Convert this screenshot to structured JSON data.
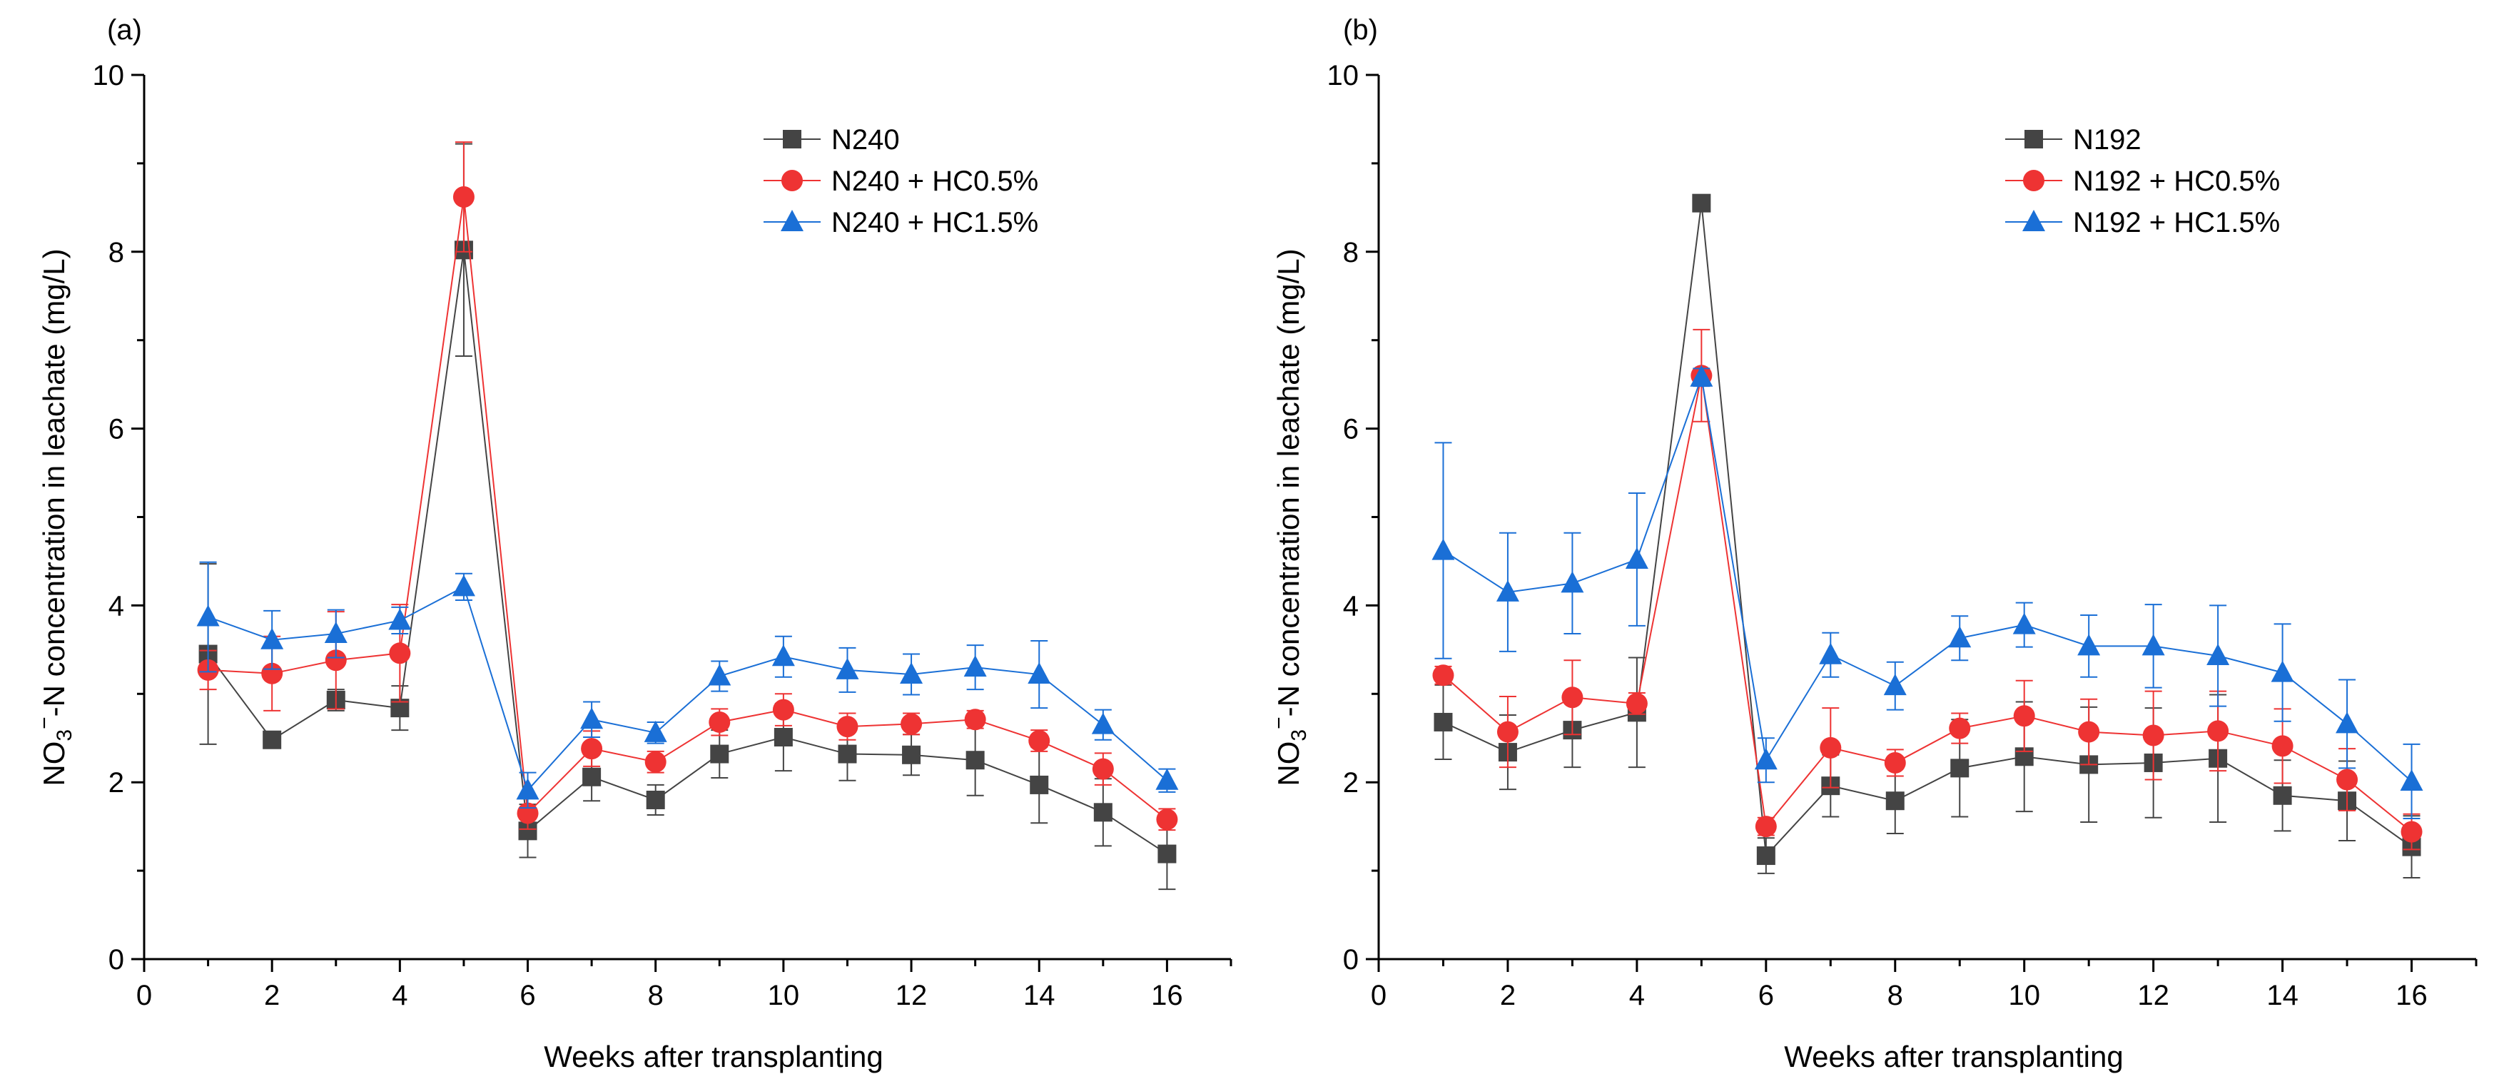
{
  "chart_data": [
    {
      "type": "line",
      "panel_label": "(a)",
      "title": "",
      "xlabel": "Weeks after transplanting",
      "ylabel_prefix": "NO",
      "ylabel_sub": "3",
      "ylabel_sup": "−",
      "ylabel_suffix": "-N concentration in leachate (mg/L)",
      "xlim": [
        0,
        17
      ],
      "ylim": [
        0,
        10
      ],
      "xticks": [
        "0",
        "2",
        "4",
        "6",
        "8",
        "10",
        "12",
        "14",
        "16"
      ],
      "yticks": [
        "0",
        "2",
        "4",
        "6",
        "8",
        "10"
      ],
      "legend_position": "top-right",
      "x": [
        1,
        2,
        3,
        4,
        5,
        6,
        7,
        8,
        9,
        10,
        11,
        12,
        13,
        14,
        15,
        16
      ],
      "series": [
        {
          "name": "N240",
          "color": "#444444",
          "marker": "square",
          "values": [
            3.45,
            2.48,
            2.93,
            2.84,
            8.02,
            1.45,
            2.06,
            1.8,
            2.32,
            2.51,
            2.32,
            2.31,
            2.25,
            1.97,
            1.66,
            1.19
          ],
          "errors": [
            1.02,
            0.05,
            0.12,
            0.25,
            1.2,
            0.3,
            0.27,
            0.17,
            0.27,
            0.38,
            0.3,
            0.23,
            0.4,
            0.43,
            0.38,
            0.4
          ]
        },
        {
          "name": "N240 + HC0.5%",
          "color": "#ee3333",
          "marker": "circle",
          "values": [
            3.27,
            3.23,
            3.38,
            3.46,
            8.62,
            1.65,
            2.38,
            2.23,
            2.68,
            2.82,
            2.63,
            2.66,
            2.71,
            2.47,
            2.15,
            1.58
          ],
          "errors": [
            0.22,
            0.42,
            0.55,
            0.55,
            0.62,
            0.18,
            0.2,
            0.12,
            0.15,
            0.18,
            0.15,
            0.12,
            0.1,
            0.12,
            0.18,
            0.12
          ]
        },
        {
          "name": "N240 + HC1.5%",
          "color": "#1a6fd6",
          "marker": "triangle",
          "values": [
            3.87,
            3.61,
            3.68,
            3.83,
            4.21,
            1.91,
            2.71,
            2.56,
            3.2,
            3.42,
            3.27,
            3.22,
            3.3,
            3.22,
            2.65,
            2.02
          ],
          "errors": [
            0.62,
            0.33,
            0.27,
            0.15,
            0.15,
            0.2,
            0.2,
            0.12,
            0.17,
            0.23,
            0.25,
            0.23,
            0.25,
            0.38,
            0.17,
            0.13
          ]
        }
      ]
    },
    {
      "type": "line",
      "panel_label": "(b)",
      "title": "",
      "xlabel": "Weeks after transplanting",
      "ylabel_prefix": "NO",
      "ylabel_sub": "3",
      "ylabel_sup": "−",
      "ylabel_suffix": "-N concentration in leachate (mg/L)",
      "xlim": [
        0,
        17
      ],
      "ylim": [
        0,
        10
      ],
      "xticks": [
        "0",
        "2",
        "4",
        "6",
        "8",
        "10",
        "12",
        "14",
        "16"
      ],
      "yticks": [
        "0",
        "2",
        "4",
        "6",
        "8",
        "10"
      ],
      "legend_position": "top-right",
      "x": [
        1,
        2,
        3,
        4,
        5,
        6,
        7,
        8,
        9,
        10,
        11,
        12,
        13,
        14,
        15,
        16
      ],
      "series": [
        {
          "name": "N192",
          "color": "#444444",
          "marker": "square",
          "values": [
            2.68,
            2.34,
            2.59,
            2.79,
            8.55,
            1.17,
            1.96,
            1.79,
            2.16,
            2.29,
            2.2,
            2.22,
            2.27,
            1.85,
            1.79,
            1.27
          ],
          "errors": [
            0.42,
            0.42,
            0.42,
            0.62,
            0.0,
            0.2,
            0.35,
            0.37,
            0.55,
            0.62,
            0.65,
            0.62,
            0.72,
            0.4,
            0.45,
            0.35
          ]
        },
        {
          "name": "N192 + HC0.5%",
          "color": "#ee3333",
          "marker": "circle",
          "values": [
            3.21,
            2.57,
            2.96,
            2.89,
            6.6,
            1.5,
            2.39,
            2.22,
            2.61,
            2.75,
            2.57,
            2.53,
            2.58,
            2.41,
            2.03,
            1.44
          ],
          "errors": [
            0.1,
            0.4,
            0.42,
            0.12,
            0.52,
            0.1,
            0.45,
            0.15,
            0.17,
            0.4,
            0.37,
            0.5,
            0.45,
            0.42,
            0.35,
            0.2
          ]
        },
        {
          "name": "N192 + HC1.5%",
          "color": "#1a6fd6",
          "marker": "triangle",
          "values": [
            4.62,
            4.15,
            4.25,
            4.52,
            6.58,
            2.25,
            3.44,
            3.09,
            3.63,
            3.78,
            3.54,
            3.54,
            3.43,
            3.24,
            2.66,
            2.01
          ],
          "errors": [
            1.22,
            0.67,
            0.57,
            0.75,
            0.1,
            0.25,
            0.25,
            0.27,
            0.25,
            0.25,
            0.35,
            0.47,
            0.57,
            0.55,
            0.5,
            0.42
          ]
        }
      ]
    }
  ]
}
